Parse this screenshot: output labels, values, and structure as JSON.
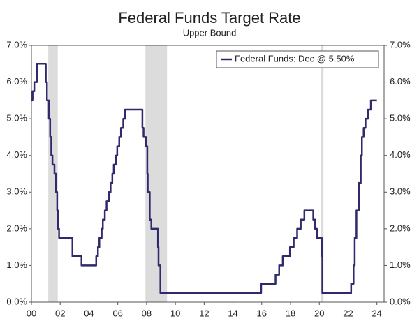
{
  "chart_data": {
    "type": "line",
    "title": "Federal Funds Target Rate",
    "subtitle": "Upper Bound",
    "step": "post",
    "x": [
      2000.0,
      2000.08,
      2000.2,
      2000.38,
      2001.0,
      2001.08,
      2001.21,
      2001.3,
      2001.38,
      2001.46,
      2001.6,
      2001.71,
      2001.79,
      2001.84,
      2001.92,
      2002.85,
      2003.48,
      2004.5,
      2004.62,
      2004.72,
      2004.88,
      2004.96,
      2005.1,
      2005.22,
      2005.38,
      2005.5,
      2005.62,
      2005.72,
      2005.88,
      2005.96,
      2006.1,
      2006.22,
      2006.38,
      2006.5,
      2007.71,
      2007.79,
      2007.96,
      2008.05,
      2008.08,
      2008.22,
      2008.33,
      2008.79,
      2008.83,
      2008.96,
      2015.96,
      2016.96,
      2017.21,
      2017.46,
      2017.96,
      2018.22,
      2018.46,
      2018.71,
      2018.96,
      2019.58,
      2019.71,
      2019.83,
      2020.17,
      2020.21,
      2022.21,
      2022.38,
      2022.46,
      2022.58,
      2022.75,
      2022.88,
      2022.96,
      2023.08,
      2023.21,
      2023.38,
      2023.58,
      2024.0
    ],
    "series": [
      {
        "name": "Federal Funds: Dec @ 5.50%",
        "color": "#2e2a6b",
        "values": [
          5.5,
          5.75,
          6.0,
          6.5,
          6.0,
          5.5,
          5.0,
          4.5,
          4.0,
          3.75,
          3.5,
          3.0,
          2.5,
          2.0,
          1.75,
          1.25,
          1.0,
          1.25,
          1.5,
          1.75,
          2.0,
          2.25,
          2.5,
          2.75,
          3.0,
          3.25,
          3.5,
          3.75,
          4.0,
          4.25,
          4.5,
          4.75,
          5.0,
          5.25,
          4.75,
          4.5,
          4.25,
          3.5,
          3.0,
          2.25,
          2.0,
          1.5,
          1.0,
          0.25,
          0.5,
          0.75,
          1.0,
          1.25,
          1.5,
          1.75,
          2.0,
          2.25,
          2.5,
          2.25,
          2.0,
          1.75,
          1.25,
          0.25,
          0.5,
          1.0,
          1.75,
          2.5,
          3.25,
          4.0,
          4.5,
          4.75,
          5.0,
          5.25,
          5.5,
          5.5
        ]
      }
    ],
    "recessions": [
      [
        2001.17,
        2001.83
      ],
      [
        2007.92,
        2009.42
      ],
      [
        2020.13,
        2020.29
      ]
    ],
    "recession_color": "#dcdcdc",
    "xlim": [
      2000,
      2024.5
    ],
    "xticks": [
      {
        "value": 2000,
        "label": "00"
      },
      {
        "value": 2002,
        "label": "02"
      },
      {
        "value": 2004,
        "label": "04"
      },
      {
        "value": 2006,
        "label": "06"
      },
      {
        "value": 2008,
        "label": "08"
      },
      {
        "value": 2010,
        "label": "10"
      },
      {
        "value": 2012,
        "label": "12"
      },
      {
        "value": 2014,
        "label": "14"
      },
      {
        "value": 2016,
        "label": "16"
      },
      {
        "value": 2018,
        "label": "18"
      },
      {
        "value": 2020,
        "label": "20"
      },
      {
        "value": 2022,
        "label": "22"
      },
      {
        "value": 2024,
        "label": "24"
      }
    ],
    "ylim": [
      0,
      7
    ],
    "yticks": [
      {
        "value": 0,
        "label": "0.0%"
      },
      {
        "value": 1,
        "label": "1.0%"
      },
      {
        "value": 2,
        "label": "2.0%"
      },
      {
        "value": 3,
        "label": "3.0%"
      },
      {
        "value": 4,
        "label": "4.0%"
      },
      {
        "value": 5,
        "label": "5.0%"
      },
      {
        "value": 6,
        "label": "6.0%"
      },
      {
        "value": 7,
        "label": "7.0%"
      }
    ],
    "legend": "top-right"
  }
}
